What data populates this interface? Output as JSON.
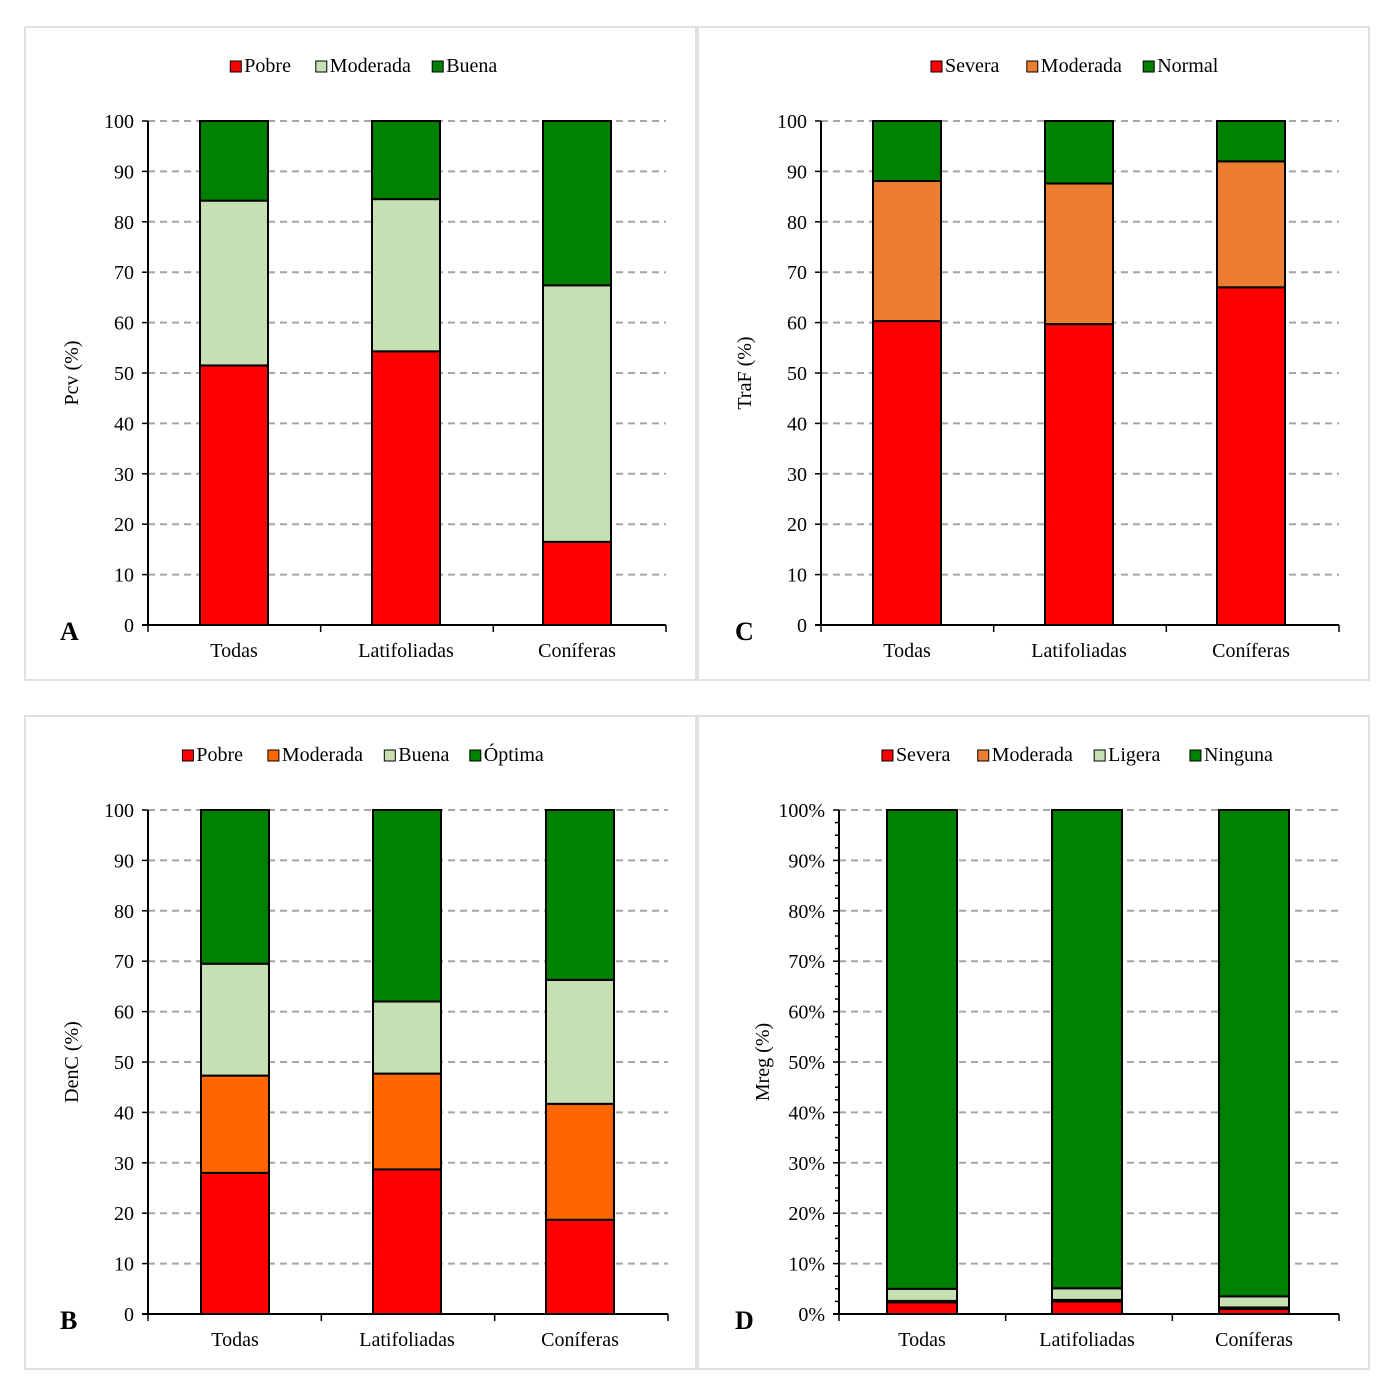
{
  "chart_data": [
    {
      "panel_letter": "A",
      "type": "bar",
      "stacked": true,
      "ylabel": "Pcv (%)",
      "ylim": [
        0,
        100
      ],
      "yticks": [
        "0",
        "10",
        "20",
        "30",
        "40",
        "50",
        "60",
        "70",
        "80",
        "90",
        "100"
      ],
      "categories": [
        "Todas",
        "Latifoliadas",
        "Coníferas"
      ],
      "series": [
        {
          "name": "Pobre",
          "color": "#ff0000",
          "values": [
            51.5,
            54.3,
            16.5
          ]
        },
        {
          "name": "Moderada",
          "color": "#c6e0b4",
          "values": [
            32.7,
            30.2,
            50.9
          ]
        },
        {
          "name": "Buena",
          "color": "#008000",
          "values": [
            15.8,
            15.5,
            32.6
          ]
        }
      ]
    },
    {
      "panel_letter": "C",
      "type": "bar",
      "stacked": true,
      "ylabel": "TraF (%)",
      "ylim": [
        0,
        100
      ],
      "yticks": [
        "0",
        "10",
        "20",
        "30",
        "40",
        "50",
        "60",
        "70",
        "80",
        "90",
        "100"
      ],
      "categories": [
        "Todas",
        "Latifoliadas",
        "Coníferas"
      ],
      "series": [
        {
          "name": "Severa",
          "color": "#ff0000",
          "values": [
            60.3,
            59.7,
            67.0
          ]
        },
        {
          "name": "Moderada",
          "color": "#ed7d31",
          "values": [
            27.8,
            27.9,
            25.0
          ]
        },
        {
          "name": "Normal",
          "color": "#008000",
          "values": [
            11.9,
            12.4,
            8.0
          ]
        }
      ]
    },
    {
      "panel_letter": "B",
      "type": "bar",
      "stacked": true,
      "ylabel": "DenC (%)",
      "ylim": [
        0,
        100
      ],
      "yticks": [
        "0",
        "10",
        "20",
        "30",
        "40",
        "50",
        "60",
        "70",
        "80",
        "90",
        "100"
      ],
      "categories": [
        "Todas",
        "Latifoliadas",
        "Coníferas"
      ],
      "series": [
        {
          "name": "Pobre",
          "color": "#ff0000",
          "values": [
            28.0,
            28.7,
            18.7
          ]
        },
        {
          "name": "Moderada",
          "color": "#ff6600",
          "values": [
            19.3,
            19.0,
            23.0
          ]
        },
        {
          "name": "Buena",
          "color": "#c6e0b4",
          "values": [
            22.2,
            14.3,
            24.6
          ]
        },
        {
          "name": "Óptima",
          "color": "#008000",
          "values": [
            30.5,
            38.0,
            33.7
          ]
        }
      ]
    },
    {
      "panel_letter": "D",
      "type": "bar",
      "stacked": true,
      "ylabel": "Mreg (%)",
      "ylim": [
        0,
        100
      ],
      "yticks": [
        "0%",
        "10%",
        "20%",
        "30%",
        "40%",
        "50%",
        "60%",
        "70%",
        "80%",
        "90%",
        "100%"
      ],
      "categories": [
        "Todas",
        "Latifoliadas",
        "Coníferas"
      ],
      "series": [
        {
          "name": "Severa",
          "color": "#ff0000",
          "values": [
            2.3,
            2.5,
            1.0
          ]
        },
        {
          "name": "Moderada",
          "color": "#ed7d31",
          "values": [
            0.3,
            0.3,
            0.3
          ]
        },
        {
          "name": "Ligera",
          "color": "#c6e0b4",
          "values": [
            2.4,
            2.3,
            2.2
          ]
        },
        {
          "name": "Ninguna",
          "color": "#008000",
          "values": [
            95.0,
            94.9,
            96.5
          ]
        }
      ]
    }
  ]
}
